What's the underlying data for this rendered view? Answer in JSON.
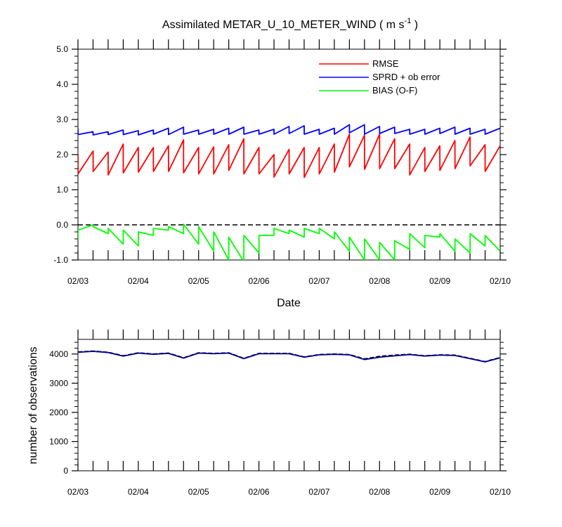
{
  "chart_data": [
    {
      "type": "line",
      "title_main": "Assimilated METAR_U_10_METER_WIND ( m s",
      "title_sup": "-1",
      "title_end": " )",
      "xlabel": "Date",
      "ylabel": "",
      "ylim": [
        -1.0,
        5.0
      ],
      "yticks": [
        "-1.0",
        "0.0",
        "1.0",
        "2.0",
        "3.0",
        "4.0",
        "5.0"
      ],
      "xlim": [
        0,
        7
      ],
      "xticks": [
        "02/03",
        "02/04",
        "02/05",
        "02/06",
        "02/07",
        "02/08",
        "02/09",
        "02/10"
      ],
      "zero_line": "dashed",
      "legend_position": "top-right",
      "series": [
        {
          "name": "RMSE",
          "color": "#ff0000",
          "x": [
            0,
            0.001,
            0.25,
            0.251,
            0.5,
            0.501,
            0.75,
            0.751,
            1.0,
            1.001,
            1.25,
            1.251,
            1.5,
            1.501,
            1.75,
            1.751,
            2.0,
            2.001,
            2.25,
            2.251,
            2.5,
            2.501,
            2.75,
            2.751,
            3.0,
            3.001,
            3.25,
            3.251,
            3.5,
            3.501,
            3.75,
            3.751,
            4.0,
            4.001,
            4.25,
            4.251,
            4.5,
            4.501,
            4.75,
            4.751,
            5.0,
            5.001,
            5.25,
            5.251,
            5.5,
            5.501,
            5.75,
            5.751,
            6.0,
            6.001,
            6.25,
            6.251,
            6.5,
            6.501,
            6.75,
            6.751,
            7.0
          ],
          "y": [
            2.02,
            1.45,
            2.1,
            1.52,
            2.07,
            1.42,
            2.3,
            1.48,
            2.2,
            1.5,
            2.2,
            1.52,
            2.25,
            1.52,
            2.42,
            1.48,
            2.2,
            1.45,
            2.22,
            1.45,
            2.28,
            1.55,
            2.45,
            1.45,
            2.2,
            1.45,
            2.0,
            1.36,
            2.15,
            1.45,
            2.2,
            1.35,
            2.2,
            1.45,
            2.3,
            1.5,
            2.58,
            1.65,
            2.55,
            1.58,
            2.58,
            1.6,
            2.45,
            1.6,
            2.3,
            1.42,
            2.2,
            1.52,
            2.25,
            1.55,
            2.4,
            1.6,
            2.5,
            1.68,
            2.28,
            1.52,
            2.25
          ]
        },
        {
          "name": "SPRD + ob error",
          "color": "#0000ff",
          "x": [
            0,
            0.001,
            0.25,
            0.251,
            0.5,
            0.501,
            0.75,
            0.751,
            1.0,
            1.001,
            1.25,
            1.251,
            1.5,
            1.501,
            1.75,
            1.751,
            2.0,
            2.001,
            2.25,
            2.251,
            2.5,
            2.501,
            2.75,
            2.751,
            3.0,
            3.001,
            3.25,
            3.251,
            3.5,
            3.501,
            3.75,
            3.751,
            4.0,
            4.001,
            4.25,
            4.251,
            4.5,
            4.501,
            4.75,
            4.751,
            5.0,
            5.001,
            5.25,
            5.251,
            5.5,
            5.501,
            5.75,
            5.751,
            6.0,
            6.001,
            6.25,
            6.251,
            6.5,
            6.501,
            6.75,
            6.751,
            7.0
          ],
          "y": [
            2.75,
            2.57,
            2.65,
            2.56,
            2.65,
            2.57,
            2.7,
            2.57,
            2.68,
            2.56,
            2.7,
            2.58,
            2.75,
            2.57,
            2.78,
            2.58,
            2.7,
            2.58,
            2.72,
            2.58,
            2.75,
            2.58,
            2.78,
            2.58,
            2.7,
            2.58,
            2.72,
            2.58,
            2.8,
            2.6,
            2.82,
            2.58,
            2.72,
            2.58,
            2.75,
            2.58,
            2.85,
            2.62,
            2.85,
            2.58,
            2.8,
            2.6,
            2.78,
            2.6,
            2.72,
            2.58,
            2.72,
            2.58,
            2.75,
            2.6,
            2.78,
            2.58,
            2.75,
            2.58,
            2.72,
            2.58,
            2.75
          ]
        },
        {
          "name": "BIAS (O-F)",
          "color": "#00ff00",
          "x": [
            0,
            0.001,
            0.25,
            0.251,
            0.5,
            0.501,
            0.75,
            0.751,
            1.0,
            1.001,
            1.25,
            1.251,
            1.5,
            1.501,
            1.75,
            1.751,
            2.0,
            2.001,
            2.25,
            2.251,
            2.5,
            2.501,
            2.75,
            2.751,
            3.0,
            3.001,
            3.25,
            3.251,
            3.5,
            3.501,
            3.75,
            3.751,
            4.0,
            4.001,
            4.25,
            4.251,
            4.5,
            4.501,
            4.75,
            4.751,
            5.0,
            5.001,
            5.25,
            5.251,
            5.5,
            5.501,
            5.75,
            5.751,
            6.0,
            6.001,
            6.25,
            6.251,
            6.5,
            6.501,
            6.75,
            6.751,
            7.0
          ],
          "y": [
            -0.45,
            -0.15,
            0.0,
            -0.05,
            -0.25,
            -0.1,
            -0.55,
            -0.15,
            -0.6,
            -0.2,
            -0.3,
            -0.1,
            -0.15,
            -0.05,
            -0.25,
            0.02,
            -0.55,
            -0.05,
            -0.75,
            -0.2,
            -1.0,
            -0.35,
            -1.05,
            -0.3,
            -0.8,
            -0.3,
            -0.3,
            -0.1,
            -0.25,
            -0.15,
            -0.35,
            -0.1,
            -0.25,
            -0.1,
            -0.4,
            -0.2,
            -0.75,
            -0.35,
            -1.0,
            -0.4,
            -1.0,
            -0.5,
            -1.0,
            -0.45,
            -0.7,
            -0.25,
            -0.65,
            -0.3,
            -0.35,
            -0.25,
            -0.75,
            -0.4,
            -0.8,
            -0.25,
            -0.6,
            -0.3,
            -0.75
          ]
        }
      ]
    },
    {
      "type": "line",
      "xlabel": "",
      "ylabel": "number of observations",
      "ylim": [
        0,
        4500
      ],
      "yticks": [
        "0",
        "1000",
        "2000",
        "3000",
        "4000"
      ],
      "xlim": [
        0,
        7
      ],
      "xticks": [
        "02/03",
        "02/04",
        "02/05",
        "02/06",
        "02/07",
        "02/08",
        "02/09",
        "02/10"
      ],
      "series": [
        {
          "color": "#000000",
          "dash": "dashed",
          "x": [
            0,
            0.25,
            0.5,
            0.75,
            1.0,
            1.25,
            1.5,
            1.75,
            2.0,
            2.25,
            2.5,
            2.75,
            3.0,
            3.25,
            3.5,
            3.75,
            4.0,
            4.25,
            4.5,
            4.75,
            5.0,
            5.25,
            5.5,
            5.75,
            6.0,
            6.25,
            6.5,
            6.75,
            7.0
          ],
          "y": [
            4070,
            4100,
            4060,
            3940,
            4040,
            4000,
            4030,
            3870,
            4040,
            4020,
            4040,
            3850,
            4020,
            4020,
            4020,
            3900,
            3980,
            4000,
            3980,
            3830,
            3920,
            3960,
            3990,
            3940,
            3970,
            3960,
            3850,
            3740,
            3880
          ]
        },
        {
          "color": "#00008b",
          "dash": "solid",
          "x": [
            0,
            0.25,
            0.5,
            0.75,
            1.0,
            1.25,
            1.5,
            1.75,
            2.0,
            2.25,
            2.5,
            2.75,
            3.0,
            3.25,
            3.5,
            3.75,
            4.0,
            4.25,
            4.5,
            4.75,
            5.0,
            5.25,
            5.5,
            5.75,
            6.0,
            6.25,
            6.5,
            6.75,
            7.0
          ],
          "y": [
            4060,
            4090,
            4050,
            3930,
            4030,
            3990,
            4020,
            3860,
            4030,
            4010,
            4030,
            3840,
            4010,
            4010,
            4010,
            3890,
            3970,
            3990,
            3970,
            3810,
            3890,
            3940,
            3980,
            3930,
            3960,
            3950,
            3840,
            3730,
            3870
          ]
        }
      ]
    }
  ]
}
